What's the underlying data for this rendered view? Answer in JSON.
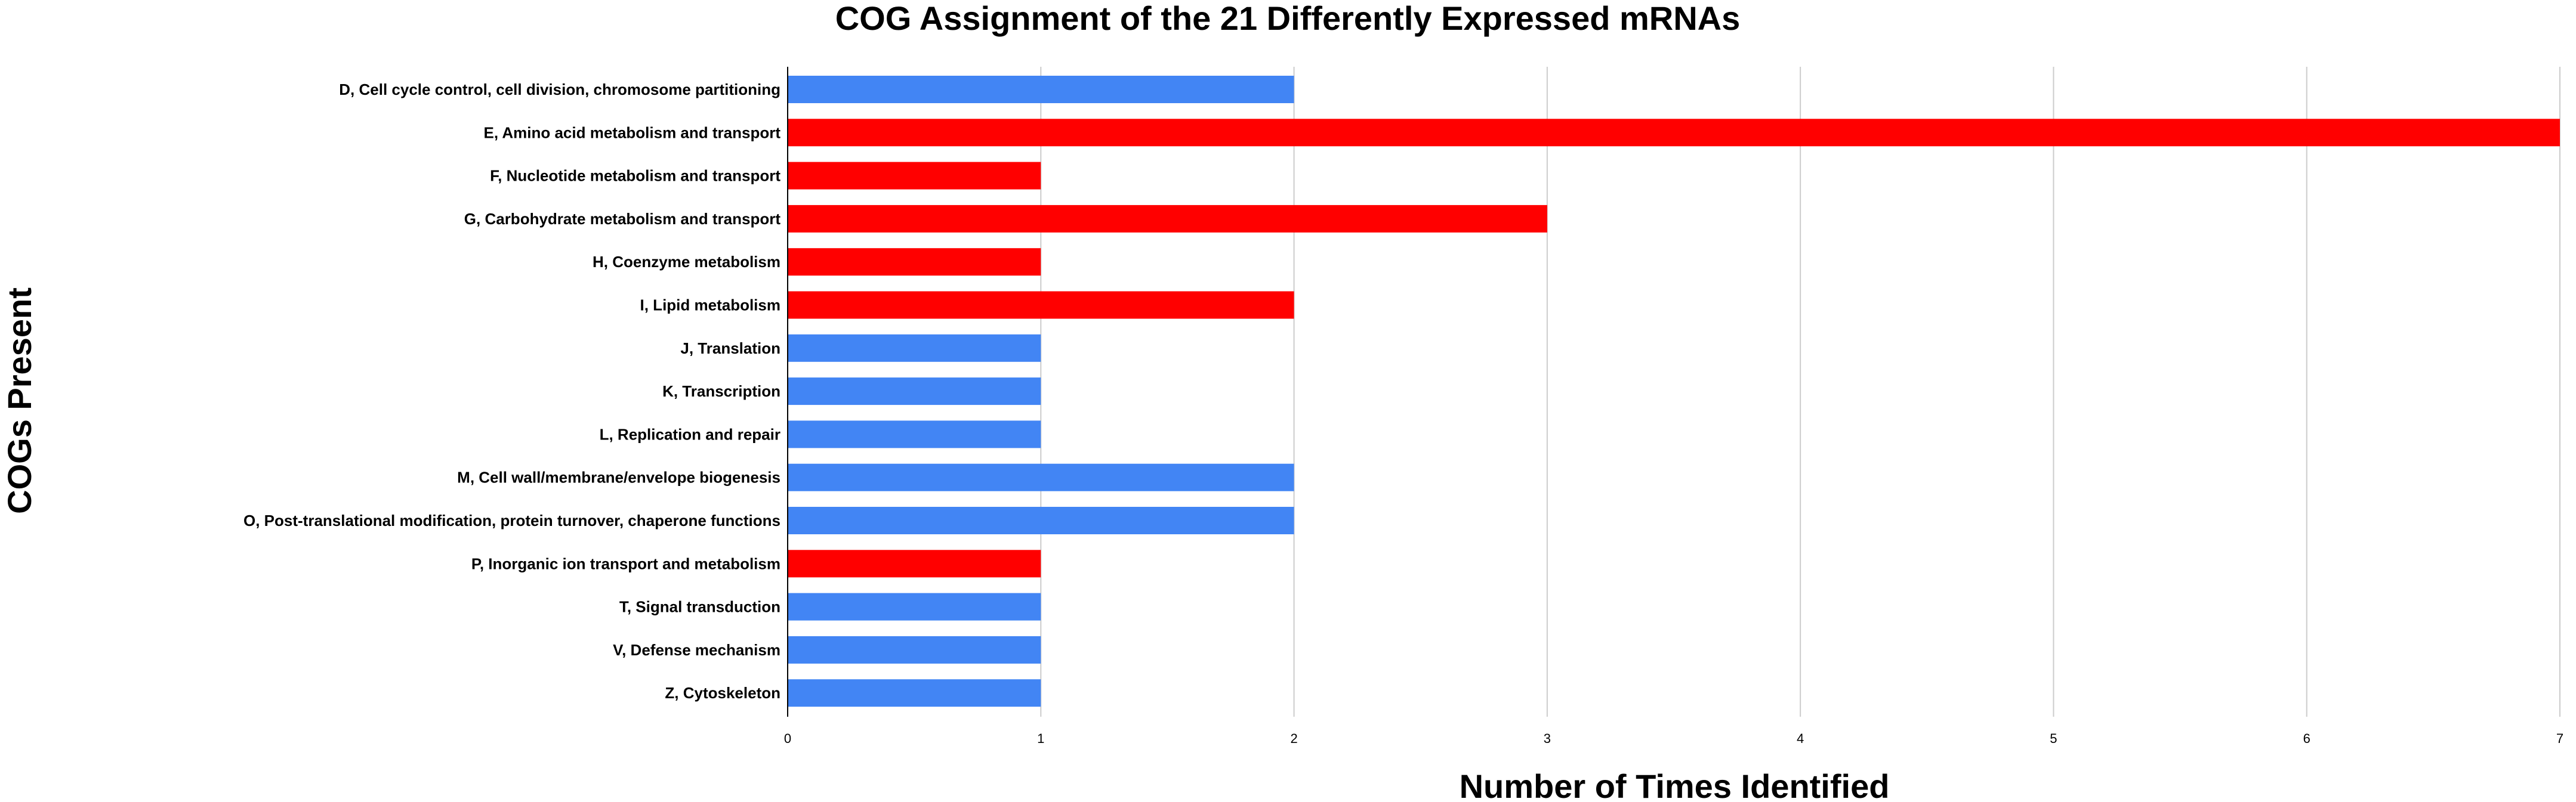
{
  "chart_data": {
    "type": "bar",
    "orientation": "horizontal",
    "title": "COG Assignment of the 21 Differently Expressed mRNAs",
    "xlabel": "Number of Times Identified",
    "ylabel": "COGs Present",
    "xlim": [
      0,
      7
    ],
    "xticks": [
      "0",
      "1",
      "2",
      "3",
      "4",
      "5",
      "6",
      "7"
    ],
    "grid": "vertical",
    "legend": "none",
    "colors": {
      "blue": "#4285f4",
      "red": "#ff0000"
    },
    "categories": [
      "D, Cell cycle control, cell division, chromosome partitioning",
      "E, Amino acid metabolism and transport",
      "F, Nucleotide metabolism and transport",
      "G, Carbohydrate metabolism and transport",
      "H, Coenzyme metabolism",
      "I, Lipid metabolism",
      "J, Translation",
      "K, Transcription",
      "L, Replication and repair",
      "M, Cell wall/membrane/envelope biogenesis",
      "O, Post-translational modification, protein turnover, chaperone functions",
      "P, Inorganic ion transport and metabolism",
      "T, Signal transduction",
      "V, Defense mechanism",
      "Z, Cytoskeleton"
    ],
    "values": [
      2,
      7,
      1,
      3,
      1,
      2,
      1,
      1,
      1,
      2,
      2,
      1,
      1,
      1,
      1
    ],
    "bar_colors": [
      "blue",
      "red",
      "red",
      "red",
      "red",
      "red",
      "blue",
      "blue",
      "blue",
      "blue",
      "blue",
      "red",
      "blue",
      "blue",
      "blue"
    ]
  }
}
